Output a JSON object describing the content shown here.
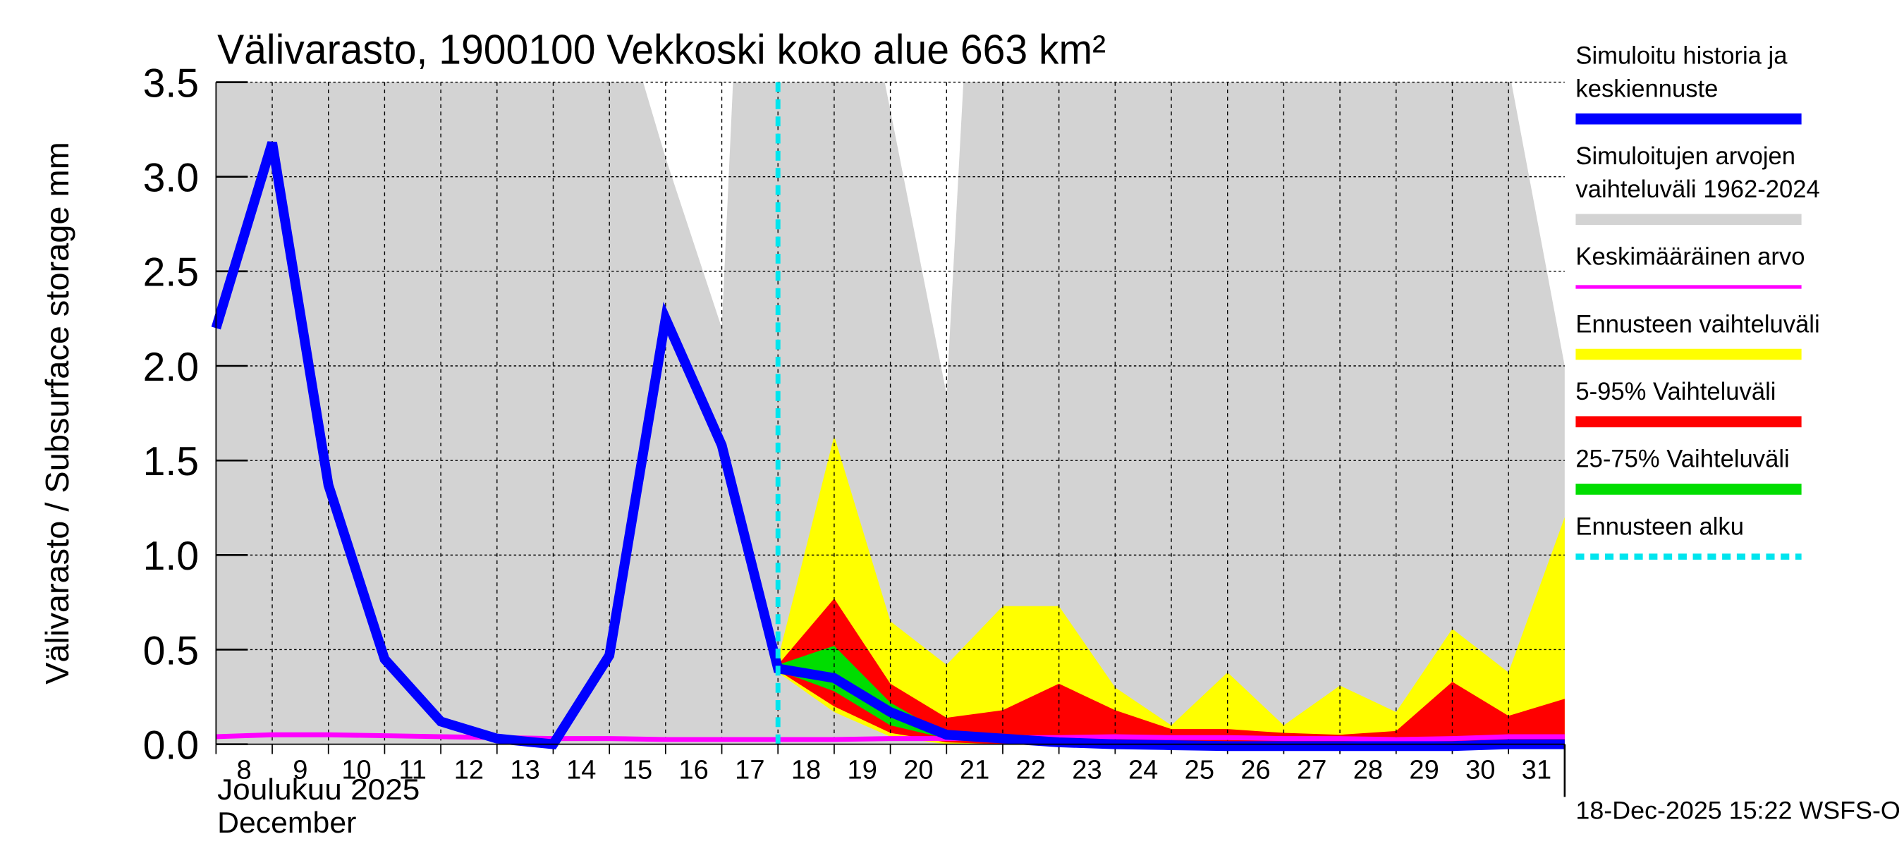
{
  "chart_data": {
    "type": "area",
    "title": "Välivarasto, 1900100 Vekkoski koko alue 663 km²",
    "ylabel": "Välivarasto / Subsurface storage  mm",
    "xlabel_line1": "Joulukuu  2025",
    "xlabel_line2": "December",
    "ylim": [
      0,
      3.5
    ],
    "xlim": [
      8,
      32
    ],
    "yticks": [
      "0.0",
      "0.5",
      "1.0",
      "1.5",
      "2.0",
      "2.5",
      "3.0",
      "3.5"
    ],
    "ytick_values": [
      0,
      0.5,
      1,
      1.5,
      2,
      2.5,
      3,
      3.5
    ],
    "xticks": [
      "8",
      "9",
      "10",
      "11",
      "12",
      "13",
      "14",
      "15",
      "16",
      "17",
      "18",
      "19",
      "20",
      "21",
      "22",
      "23",
      "24",
      "25",
      "26",
      "27",
      "28",
      "29",
      "30",
      "31"
    ],
    "grid": true,
    "forecast_start": 18,
    "series": [
      {
        "name": "Simuloitujen arvojen vaihteluväli 1962-2024",
        "kind": "band",
        "color": "#d3d3d3",
        "x": [
          8,
          15.6,
          16,
          17,
          17.2,
          19.9,
          21,
          21.3,
          31.05,
          32
        ],
        "upper": [
          3.5,
          3.5,
          3.1,
          2.2,
          3.5,
          3.5,
          1.85,
          3.5,
          3.5,
          2.0
        ],
        "lower": [
          0,
          0,
          0,
          0,
          0,
          0,
          0,
          0,
          0,
          0
        ]
      },
      {
        "name": "Ennusteen vaihteluväli",
        "kind": "band",
        "color": "#ffff00",
        "x": [
          18,
          19,
          20,
          21,
          22,
          23,
          24,
          25,
          26,
          27,
          28,
          29,
          30,
          31,
          32
        ],
        "upper": [
          0.45,
          1.63,
          0.65,
          0.42,
          0.73,
          0.73,
          0.3,
          0.1,
          0.38,
          0.1,
          0.31,
          0.17,
          0.61,
          0.38,
          1.2
        ],
        "lower": [
          0.38,
          0.17,
          0.04,
          0,
          0,
          0,
          0,
          0,
          0,
          0,
          0,
          0,
          0,
          0,
          0
        ]
      },
      {
        "name": "5-95% Vaihteluväli",
        "kind": "band",
        "color": "#ff0000",
        "x": [
          18,
          19,
          20,
          21,
          22,
          23,
          24,
          25,
          26,
          27,
          28,
          29,
          30,
          31,
          32
        ],
        "upper": [
          0.42,
          0.77,
          0.32,
          0.14,
          0.18,
          0.32,
          0.18,
          0.08,
          0.08,
          0.06,
          0.05,
          0.07,
          0.33,
          0.15,
          0.24
        ],
        "lower": [
          0.39,
          0.2,
          0.06,
          0.01,
          0,
          0,
          0,
          0,
          0,
          0,
          0,
          0,
          0,
          0,
          0
        ]
      },
      {
        "name": "25-75% Vaihteluväli",
        "kind": "band",
        "color": "#00dd00",
        "x": [
          18,
          19,
          20,
          21,
          22
        ],
        "upper": [
          0.42,
          0.52,
          0.22,
          0.05,
          0.03
        ],
        "lower": [
          0.39,
          0.28,
          0.1,
          0.03,
          0.02
        ]
      },
      {
        "name": "Keskimääräinen arvo",
        "kind": "line",
        "color": "#ff00ff",
        "width": 4,
        "x": [
          8,
          9,
          10,
          11,
          12,
          13,
          14,
          15,
          16,
          17,
          18,
          19,
          20,
          21,
          22,
          23,
          24,
          25,
          26,
          27,
          28,
          29,
          30,
          31,
          32
        ],
        "y": [
          0.04,
          0.05,
          0.05,
          0.045,
          0.04,
          0.035,
          0.03,
          0.03,
          0.025,
          0.025,
          0.025,
          0.025,
          0.03,
          0.03,
          0.035,
          0.035,
          0.04,
          0.035,
          0.035,
          0.03,
          0.03,
          0.025,
          0.03,
          0.04,
          0.04
        ]
      },
      {
        "name": "Simuloitu historia ja keskiennuste",
        "kind": "line",
        "color": "#0000ff",
        "width": 8,
        "x": [
          8,
          9,
          10,
          11,
          12,
          13,
          14,
          15,
          16,
          17,
          18,
          19,
          20,
          21,
          22,
          23,
          24,
          25,
          26,
          27,
          28,
          29,
          30,
          31,
          32
        ],
        "y": [
          2.2,
          3.18,
          1.37,
          0.45,
          0.12,
          0.03,
          0.0,
          0.47,
          2.25,
          1.58,
          0.4,
          0.35,
          0.17,
          0.05,
          0.03,
          0.01,
          0.0,
          -0.005,
          -0.01,
          -0.01,
          -0.01,
          -0.01,
          -0.01,
          0.0,
          0.0
        ]
      }
    ],
    "legend": [
      {
        "label_lines": [
          "Simuloitu historia ja",
          "keskiennuste"
        ],
        "color": "#0000ff",
        "style": "thick"
      },
      {
        "label_lines": [
          "Simuloitujen arvojen",
          "vaihteluväli 1962-2024"
        ],
        "color": "#d3d3d3",
        "style": "thick"
      },
      {
        "label_lines": [
          "Keskimääräinen arvo"
        ],
        "color": "#ff00ff",
        "style": "thin"
      },
      {
        "label_lines": [
          "Ennusteen vaihteluväli"
        ],
        "color": "#ffff00",
        "style": "thick"
      },
      {
        "label_lines": [
          "5-95% Vaihteluväli"
        ],
        "color": "#ff0000",
        "style": "thick"
      },
      {
        "label_lines": [
          "25-75% Vaihteluväli"
        ],
        "color": "#00dd00",
        "style": "thick"
      },
      {
        "label_lines": [
          "Ennusteen alku"
        ],
        "color": "#00e5ee",
        "style": "dashed"
      }
    ],
    "legend_position": "right",
    "footer": "18-Dec-2025 15:22 WSFS-O"
  }
}
